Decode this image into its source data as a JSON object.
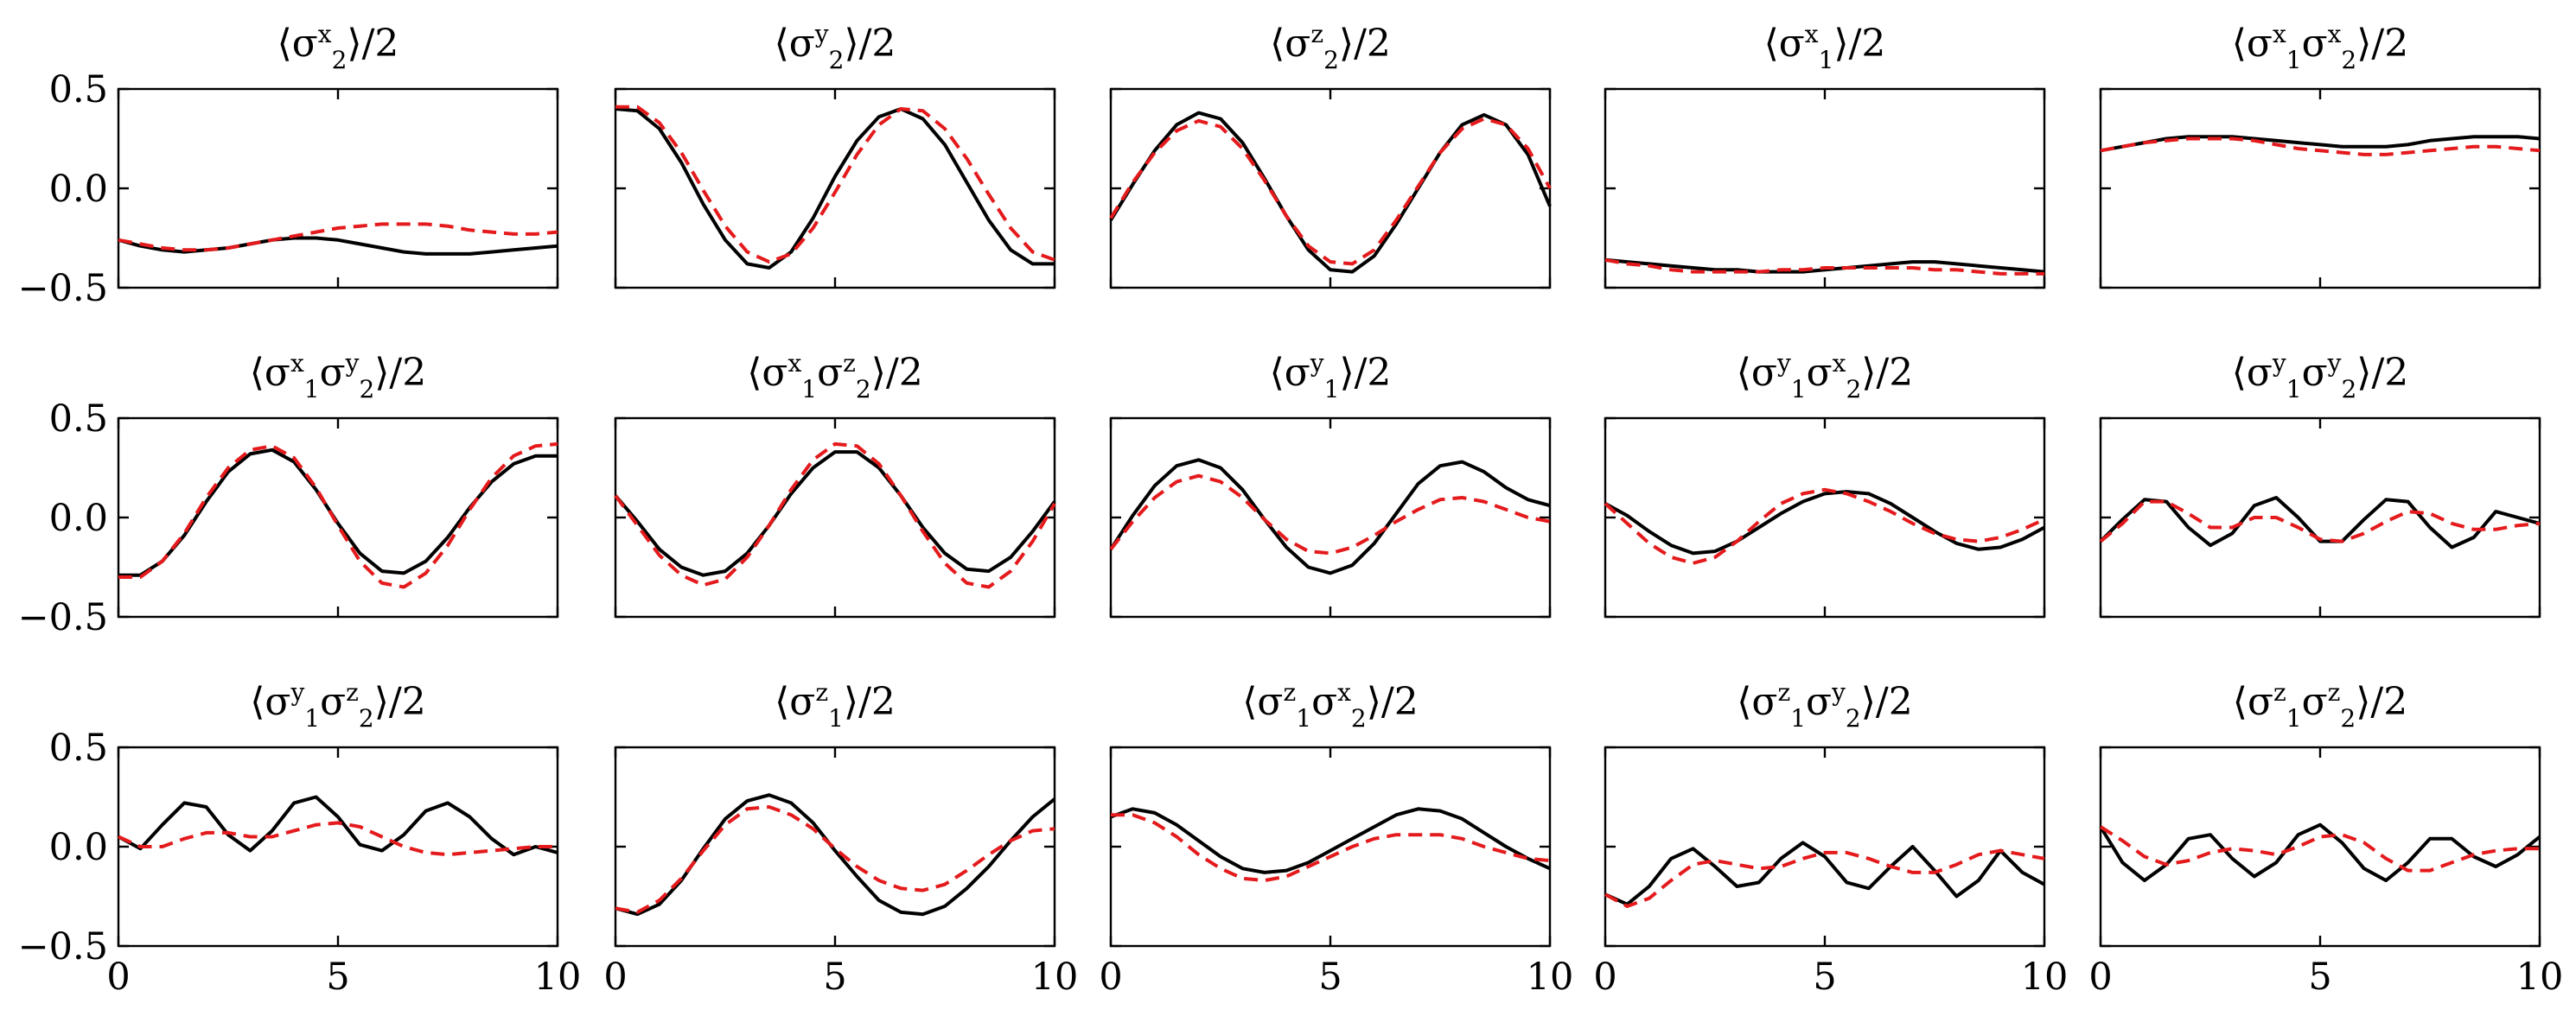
{
  "chart_data": {
    "type": "line",
    "grid": false,
    "legend": "none",
    "colors": {
      "series_solid": "#000000",
      "series_dashed": "#e41a1c"
    },
    "xlim": [
      0,
      10
    ],
    "ylim": [
      -0.5,
      0.5
    ],
    "x_ticks": [
      "0",
      "5",
      "10"
    ],
    "y_ticks": [
      "0.5",
      "0.0",
      "−0.5"
    ],
    "x": [
      0,
      0.5,
      1,
      1.5,
      2,
      2.5,
      3,
      3.5,
      4,
      4.5,
      5,
      5.5,
      6,
      6.5,
      7,
      7.5,
      8,
      8.5,
      9,
      9.5,
      10
    ],
    "panels": [
      {
        "title": "⟨σ2x⟩/2",
        "title_parts": {
          "base": "⟨σ",
          "sup": "x",
          "sub": "2",
          "tail": "⟩/2"
        },
        "solid": [
          -0.26,
          -0.29,
          -0.31,
          -0.32,
          -0.31,
          -0.3,
          -0.28,
          -0.26,
          -0.25,
          -0.25,
          -0.26,
          -0.28,
          -0.3,
          -0.32,
          -0.33,
          -0.33,
          -0.33,
          -0.32,
          -0.31,
          -0.3,
          -0.29
        ],
        "dashed": [
          -0.26,
          -0.28,
          -0.3,
          -0.31,
          -0.31,
          -0.3,
          -0.28,
          -0.26,
          -0.24,
          -0.22,
          -0.2,
          -0.19,
          -0.18,
          -0.18,
          -0.18,
          -0.19,
          -0.21,
          -0.22,
          -0.23,
          -0.23,
          -0.22
        ]
      },
      {
        "title": "⟨σ2y⟩/2",
        "title_parts": {
          "base": "⟨σ",
          "sup": "y",
          "sub": "2",
          "tail": "⟩/2"
        },
        "solid": [
          0.4,
          0.39,
          0.3,
          0.13,
          -0.08,
          -0.26,
          -0.38,
          -0.4,
          -0.32,
          -0.15,
          0.06,
          0.24,
          0.36,
          0.4,
          0.35,
          0.22,
          0.03,
          -0.16,
          -0.31,
          -0.38,
          -0.38
        ],
        "dashed": [
          0.41,
          0.41,
          0.33,
          0.18,
          -0.01,
          -0.19,
          -0.32,
          -0.37,
          -0.33,
          -0.2,
          -0.02,
          0.17,
          0.32,
          0.4,
          0.39,
          0.3,
          0.15,
          -0.03,
          -0.2,
          -0.32,
          -0.36
        ]
      },
      {
        "title": "⟨σ2z⟩/2",
        "title_parts": {
          "base": "⟨σ",
          "sup": "z",
          "sub": "2",
          "tail": "⟩/2"
        },
        "solid": [
          -0.16,
          0.02,
          0.19,
          0.32,
          0.38,
          0.35,
          0.23,
          0.05,
          -0.14,
          -0.31,
          -0.41,
          -0.42,
          -0.34,
          -0.18,
          0.0,
          0.18,
          0.32,
          0.37,
          0.32,
          0.17,
          -0.09
        ],
        "dashed": [
          -0.15,
          0.03,
          0.18,
          0.29,
          0.34,
          0.31,
          0.2,
          0.04,
          -0.14,
          -0.29,
          -0.37,
          -0.38,
          -0.31,
          -0.16,
          0.01,
          0.18,
          0.3,
          0.35,
          0.32,
          0.2,
          0.0
        ]
      },
      {
        "title": "⟨σ1x⟩/2",
        "title_parts": {
          "base": "⟨σ",
          "sup": "x",
          "sub": "1",
          "tail": "⟩/2"
        },
        "solid": [
          -0.36,
          -0.37,
          -0.38,
          -0.39,
          -0.4,
          -0.41,
          -0.41,
          -0.42,
          -0.42,
          -0.42,
          -0.41,
          -0.4,
          -0.39,
          -0.38,
          -0.37,
          -0.37,
          -0.38,
          -0.39,
          -0.4,
          -0.41,
          -0.42
        ],
        "dashed": [
          -0.36,
          -0.38,
          -0.39,
          -0.41,
          -0.42,
          -0.42,
          -0.42,
          -0.42,
          -0.41,
          -0.41,
          -0.4,
          -0.4,
          -0.4,
          -0.4,
          -0.4,
          -0.41,
          -0.41,
          -0.42,
          -0.43,
          -0.43,
          -0.43
        ]
      },
      {
        "title": "⟨σ1xσ2x⟩/2",
        "title_parts": {
          "base": "⟨σ",
          "sup": "x",
          "sub": "1",
          "mid": "σ",
          "sup2": "x",
          "sub2": "2",
          "tail": "⟩/2"
        },
        "solid": [
          0.19,
          0.21,
          0.23,
          0.25,
          0.26,
          0.26,
          0.26,
          0.25,
          0.24,
          0.23,
          0.22,
          0.21,
          0.21,
          0.21,
          0.22,
          0.24,
          0.25,
          0.26,
          0.26,
          0.26,
          0.25
        ],
        "dashed": [
          0.19,
          0.21,
          0.23,
          0.24,
          0.25,
          0.25,
          0.25,
          0.24,
          0.22,
          0.2,
          0.19,
          0.18,
          0.17,
          0.17,
          0.18,
          0.19,
          0.2,
          0.21,
          0.21,
          0.2,
          0.19
        ]
      },
      {
        "title": "⟨σ1xσ2y⟩/2",
        "title_parts": {
          "base": "⟨σ",
          "sup": "x",
          "sub": "1",
          "mid": "σ",
          "sup2": "y",
          "sub2": "2",
          "tail": "⟩/2"
        },
        "solid": [
          -0.29,
          -0.29,
          -0.22,
          -0.09,
          0.08,
          0.23,
          0.32,
          0.34,
          0.28,
          0.14,
          -0.03,
          -0.18,
          -0.27,
          -0.28,
          -0.22,
          -0.1,
          0.05,
          0.18,
          0.27,
          0.31,
          0.31
        ],
        "dashed": [
          -0.3,
          -0.3,
          -0.22,
          -0.08,
          0.1,
          0.25,
          0.34,
          0.36,
          0.3,
          0.15,
          -0.04,
          -0.22,
          -0.33,
          -0.35,
          -0.28,
          -0.14,
          0.04,
          0.2,
          0.31,
          0.36,
          0.37
        ]
      },
      {
        "title": "⟨σ1xσ2z⟩/2",
        "title_parts": {
          "base": "⟨σ",
          "sup": "x",
          "sub": "1",
          "mid": "σ",
          "sup2": "z",
          "sub2": "2",
          "tail": "⟩/2"
        },
        "solid": [
          0.11,
          -0.02,
          -0.16,
          -0.25,
          -0.29,
          -0.27,
          -0.18,
          -0.04,
          0.12,
          0.25,
          0.33,
          0.33,
          0.25,
          0.11,
          -0.05,
          -0.18,
          -0.26,
          -0.27,
          -0.2,
          -0.07,
          0.08
        ],
        "dashed": [
          0.11,
          -0.04,
          -0.19,
          -0.29,
          -0.34,
          -0.31,
          -0.2,
          -0.04,
          0.14,
          0.29,
          0.37,
          0.36,
          0.27,
          0.11,
          -0.07,
          -0.23,
          -0.33,
          -0.35,
          -0.27,
          -0.12,
          0.07
        ]
      },
      {
        "title": "⟨σ1y⟩/2",
        "title_parts": {
          "base": "⟨σ",
          "sup": "y",
          "sub": "1",
          "tail": "⟩/2"
        },
        "solid": [
          -0.16,
          0.01,
          0.16,
          0.26,
          0.29,
          0.25,
          0.14,
          -0.01,
          -0.15,
          -0.25,
          -0.28,
          -0.24,
          -0.13,
          0.02,
          0.17,
          0.26,
          0.28,
          0.23,
          0.15,
          0.09,
          0.06
        ],
        "dashed": [
          -0.16,
          -0.02,
          0.1,
          0.18,
          0.21,
          0.18,
          0.1,
          -0.01,
          -0.11,
          -0.17,
          -0.18,
          -0.15,
          -0.09,
          -0.02,
          0.04,
          0.09,
          0.1,
          0.08,
          0.04,
          0.0,
          -0.02
        ]
      },
      {
        "title": "⟨σ1yσ2x⟩/2",
        "title_parts": {
          "base": "⟨σ",
          "sup": "y",
          "sub": "1",
          "mid": "σ",
          "sup2": "x",
          "sub2": "2",
          "tail": "⟩/2"
        },
        "solid": [
          0.07,
          0.01,
          -0.07,
          -0.14,
          -0.18,
          -0.17,
          -0.12,
          -0.05,
          0.02,
          0.08,
          0.12,
          0.13,
          0.12,
          0.07,
          0.0,
          -0.07,
          -0.13,
          -0.16,
          -0.15,
          -0.11,
          -0.05
        ],
        "dashed": [
          0.07,
          -0.03,
          -0.13,
          -0.2,
          -0.23,
          -0.2,
          -0.12,
          -0.02,
          0.07,
          0.12,
          0.14,
          0.12,
          0.08,
          0.03,
          -0.03,
          -0.08,
          -0.11,
          -0.12,
          -0.1,
          -0.06,
          -0.01
        ]
      },
      {
        "title": "⟨σ1yσ2y⟩/2",
        "title_parts": {
          "base": "⟨σ",
          "sup": "y",
          "sub": "1",
          "mid": "σ",
          "sup2": "y",
          "sub2": "2",
          "tail": "⟩/2"
        },
        "solid": [
          -0.12,
          -0.01,
          0.09,
          0.08,
          -0.05,
          -0.14,
          -0.08,
          0.06,
          0.1,
          0.0,
          -0.12,
          -0.12,
          -0.01,
          0.09,
          0.08,
          -0.05,
          -0.15,
          -0.1,
          0.03,
          0.0,
          -0.03
        ],
        "dashed": [
          -0.12,
          -0.03,
          0.08,
          0.08,
          0.02,
          -0.05,
          -0.05,
          0.0,
          0.0,
          -0.05,
          -0.11,
          -0.12,
          -0.08,
          -0.02,
          0.03,
          0.02,
          -0.03,
          -0.06,
          -0.06,
          -0.04,
          -0.03
        ]
      },
      {
        "title": "⟨σ1yσ2z⟩/2",
        "title_parts": {
          "base": "⟨σ",
          "sup": "y",
          "sub": "1",
          "mid": "σ",
          "sup2": "z",
          "sub2": "2",
          "tail": "⟩/2"
        },
        "solid": [
          0.05,
          -0.01,
          0.11,
          0.22,
          0.2,
          0.06,
          -0.02,
          0.08,
          0.22,
          0.25,
          0.15,
          0.01,
          -0.02,
          0.06,
          0.18,
          0.22,
          0.15,
          0.04,
          -0.04,
          0.0,
          -0.03
        ],
        "dashed": [
          0.05,
          0.0,
          0.0,
          0.04,
          0.07,
          0.07,
          0.05,
          0.05,
          0.08,
          0.11,
          0.12,
          0.1,
          0.05,
          0.0,
          -0.03,
          -0.04,
          -0.03,
          -0.02,
          -0.01,
          0.0,
          0.0
        ]
      },
      {
        "title": "⟨σ1z⟩/2",
        "title_parts": {
          "base": "⟨σ",
          "sup": "z",
          "sub": "1",
          "tail": "⟩/2"
        },
        "solid": [
          -0.31,
          -0.34,
          -0.29,
          -0.17,
          -0.01,
          0.14,
          0.23,
          0.26,
          0.22,
          0.12,
          -0.02,
          -0.15,
          -0.27,
          -0.33,
          -0.34,
          -0.3,
          -0.21,
          -0.1,
          0.03,
          0.15,
          0.24
        ],
        "dashed": [
          -0.31,
          -0.33,
          -0.27,
          -0.16,
          -0.02,
          0.11,
          0.19,
          0.2,
          0.16,
          0.09,
          -0.01,
          -0.1,
          -0.17,
          -0.21,
          -0.22,
          -0.19,
          -0.12,
          -0.04,
          0.03,
          0.08,
          0.09
        ]
      },
      {
        "title": "⟨σ1zσ2x⟩/2",
        "title_parts": {
          "base": "⟨σ",
          "sup": "z",
          "sub": "1",
          "mid": "σ",
          "sup2": "x",
          "sub2": "2",
          "tail": "⟩/2"
        },
        "solid": [
          0.15,
          0.19,
          0.17,
          0.11,
          0.03,
          -0.05,
          -0.11,
          -0.13,
          -0.12,
          -0.08,
          -0.02,
          0.04,
          0.1,
          0.16,
          0.19,
          0.18,
          0.14,
          0.07,
          0.0,
          -0.06,
          -0.11
        ],
        "dashed": [
          0.16,
          0.16,
          0.12,
          0.05,
          -0.04,
          -0.11,
          -0.16,
          -0.17,
          -0.15,
          -0.1,
          -0.05,
          0.0,
          0.04,
          0.06,
          0.06,
          0.06,
          0.04,
          0.0,
          -0.03,
          -0.06,
          -0.07
        ]
      },
      {
        "title": "⟨σ1zσ2y⟩/2",
        "title_parts": {
          "base": "⟨σ",
          "sup": "z",
          "sub": "1",
          "mid": "σ",
          "sup2": "y",
          "sub2": "2",
          "tail": "⟩/2"
        },
        "solid": [
          -0.24,
          -0.29,
          -0.2,
          -0.06,
          -0.01,
          -0.1,
          -0.2,
          -0.18,
          -0.06,
          0.02,
          -0.05,
          -0.18,
          -0.21,
          -0.1,
          0.0,
          -0.12,
          -0.25,
          -0.17,
          -0.02,
          -0.13,
          -0.19
        ],
        "dashed": [
          -0.24,
          -0.3,
          -0.26,
          -0.17,
          -0.09,
          -0.07,
          -0.09,
          -0.11,
          -0.1,
          -0.06,
          -0.03,
          -0.03,
          -0.06,
          -0.1,
          -0.13,
          -0.13,
          -0.09,
          -0.04,
          -0.02,
          -0.04,
          -0.06
        ]
      },
      {
        "title": "⟨σ1zσ2z⟩/2",
        "title_parts": {
          "base": "⟨σ",
          "sup": "z",
          "sub": "1",
          "mid": "σ",
          "sup2": "z",
          "sub2": "2",
          "tail": "⟩/2"
        },
        "solid": [
          0.1,
          -0.08,
          -0.17,
          -0.09,
          0.04,
          0.06,
          -0.06,
          -0.15,
          -0.08,
          0.06,
          0.11,
          0.02,
          -0.11,
          -0.17,
          -0.08,
          0.04,
          0.04,
          -0.05,
          -0.1,
          -0.04,
          0.05
        ],
        "dashed": [
          0.1,
          0.03,
          -0.05,
          -0.09,
          -0.07,
          -0.03,
          -0.01,
          -0.02,
          -0.04,
          0.0,
          0.05,
          0.06,
          0.02,
          -0.06,
          -0.12,
          -0.12,
          -0.08,
          -0.04,
          -0.02,
          -0.01,
          -0.01
        ]
      }
    ]
  }
}
